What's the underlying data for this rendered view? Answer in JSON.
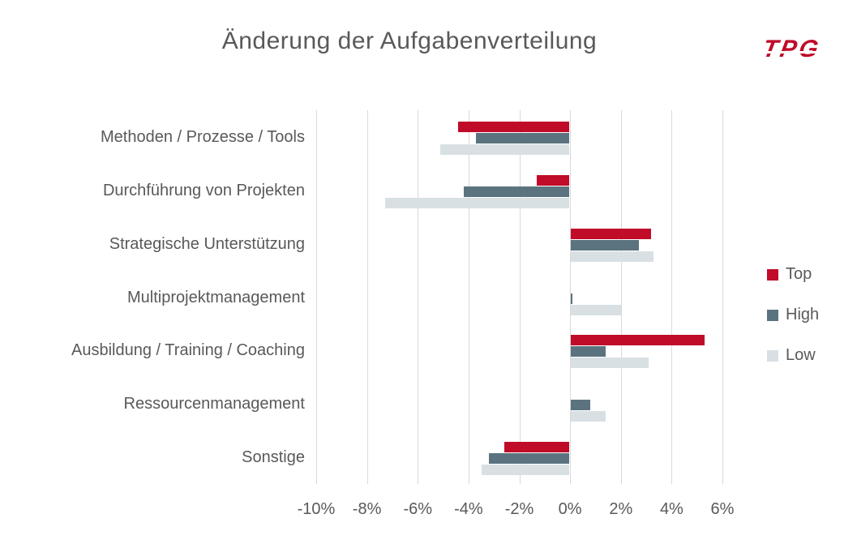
{
  "header": {
    "logo_text": "TPG"
  },
  "chart_data": {
    "type": "bar",
    "orientation": "horizontal",
    "title": "Änderung der Aufgabenverteilung",
    "categories": [
      "Methoden / Prozesse / Tools",
      "Durchführung von Projekten",
      "Strategische Unterstützung",
      "Multiprojektmanagement",
      "Ausbildung / Training / Coaching",
      "Ressourcenmanagement",
      "Sonstige"
    ],
    "series": [
      {
        "name": "Top",
        "color": "#C00B29",
        "values": [
          -4.4,
          -1.3,
          3.2,
          0.0,
          5.3,
          0.0,
          -2.6
        ]
      },
      {
        "name": "High",
        "color": "#5B737F",
        "values": [
          -3.7,
          -4.2,
          2.7,
          0.1,
          1.4,
          0.8,
          -3.2
        ]
      },
      {
        "name": "Low",
        "color": "#D9E0E4",
        "values": [
          -5.1,
          -7.3,
          3.3,
          2.0,
          3.1,
          1.4,
          -3.5
        ]
      }
    ],
    "x_ticks": [
      "-10%",
      "-8%",
      "-6%",
      "-4%",
      "-2%",
      "0%",
      "2%",
      "4%",
      "6%"
    ],
    "x_tick_values": [
      -10,
      -8,
      -6,
      -4,
      -2,
      0,
      2,
      4,
      6
    ],
    "xlim": [
      -10,
      6
    ],
    "grid": true,
    "legend_position": "right",
    "unit": "percent"
  },
  "colors": {
    "grid": "#D9D9D9",
    "text": "#595959",
    "brand_red": "#C00B29"
  }
}
